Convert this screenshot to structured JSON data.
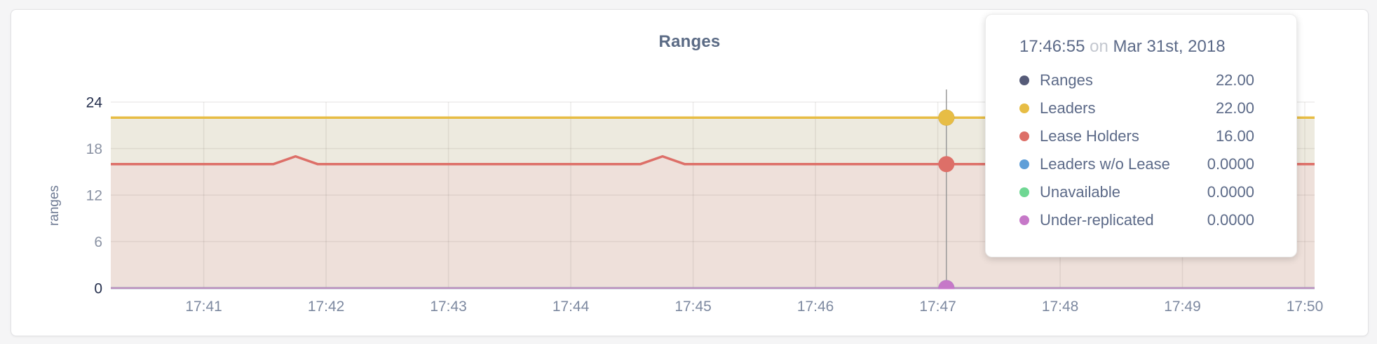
{
  "chart_data": {
    "type": "area",
    "title": "Ranges",
    "ylabel": "ranges",
    "ylim": [
      0,
      24
    ],
    "x_min_minute": 40.24,
    "x_max_minute": 50.08,
    "grid": true,
    "y_ticks": [
      {
        "value": 0,
        "label": "0",
        "major": true
      },
      {
        "value": 6,
        "label": "6",
        "major": false
      },
      {
        "value": 12,
        "label": "12",
        "major": false
      },
      {
        "value": 18,
        "label": "18",
        "major": false
      },
      {
        "value": 24,
        "label": "24",
        "major": true
      }
    ],
    "x_ticks": [
      {
        "minute": 41,
        "label": "17:41"
      },
      {
        "minute": 42,
        "label": "17:42"
      },
      {
        "minute": 43,
        "label": "17:43"
      },
      {
        "minute": 44,
        "label": "17:44"
      },
      {
        "minute": 45,
        "label": "17:45"
      },
      {
        "minute": 46,
        "label": "17:46"
      },
      {
        "minute": 47,
        "label": "17:47"
      },
      {
        "minute": 48,
        "label": "17:48"
      },
      {
        "minute": 49,
        "label": "17:49"
      },
      {
        "minute": 50,
        "label": "17:50"
      }
    ],
    "series": [
      {
        "name": "Ranges",
        "color": "#565b78",
        "width": 3,
        "points": [
          [
            40.24,
            22
          ],
          [
            50.08,
            22
          ]
        ]
      },
      {
        "name": "Leaders",
        "color": "#e7bd45",
        "width": 3.5,
        "points": [
          [
            40.24,
            22
          ],
          [
            50.08,
            22
          ]
        ]
      },
      {
        "name": "Lease Holders",
        "color": "#dd6f68",
        "width": 3.5,
        "points": [
          [
            40.24,
            16
          ],
          [
            41.57,
            16
          ],
          [
            41.75,
            17
          ],
          [
            41.93,
            16
          ],
          [
            44.57,
            16
          ],
          [
            44.75,
            17
          ],
          [
            44.93,
            16
          ],
          [
            50.08,
            16
          ]
        ]
      },
      {
        "name": "Leaders w/o Lease",
        "color": "#5f9fd8",
        "width": 2.5,
        "points": [
          [
            40.24,
            0
          ],
          [
            50.08,
            0
          ]
        ]
      },
      {
        "name": "Unavailable",
        "color": "#6fd793",
        "width": 2.5,
        "points": [
          [
            40.24,
            0
          ],
          [
            50.08,
            0
          ]
        ]
      },
      {
        "name": "Under-replicated",
        "color": "#bd8cbf",
        "width": 2.5,
        "points": [
          [
            40.24,
            0
          ],
          [
            50.08,
            0
          ]
        ]
      }
    ],
    "bands": [
      {
        "top": "Leaders",
        "bottom": "Lease Holders",
        "color": "#edeadf"
      },
      {
        "top": "Lease Holders",
        "bottom": null,
        "color": "#eee0da"
      }
    ],
    "hover": {
      "minute": 47.07,
      "line_color": "#9a9a9a",
      "dots": [
        {
          "color": "#565b78",
          "value": 22
        },
        {
          "color": "#e7bd45",
          "value": 22
        },
        {
          "color": "#dd6f68",
          "value": 16
        },
        {
          "color": "#5f9fd8",
          "value": 0
        },
        {
          "color": "#6fd793",
          "value": 0
        },
        {
          "color": "#c678c8",
          "value": 0
        }
      ]
    },
    "tooltip": {
      "time": "17:46:55",
      "on": "on",
      "date": "Mar 31st, 2018",
      "rows": [
        {
          "label": "Ranges",
          "value": "22.00",
          "color": "#565b78"
        },
        {
          "label": "Leaders",
          "value": "22.00",
          "color": "#e7bd45"
        },
        {
          "label": "Lease Holders",
          "value": "16.00",
          "color": "#dd6f68"
        },
        {
          "label": "Leaders w/o Lease",
          "value": "0.0000",
          "color": "#5f9fd8"
        },
        {
          "label": "Unavailable",
          "value": "0.0000",
          "color": "#6fd793"
        },
        {
          "label": "Under-replicated",
          "value": "0.0000",
          "color": "#c678c8"
        }
      ]
    },
    "colors": {
      "tick_major": "#26304e",
      "tick_minor": "#8b93a4",
      "x_tick": "#7d89a0",
      "grid": "rgba(110,100,90,0.12)"
    }
  }
}
